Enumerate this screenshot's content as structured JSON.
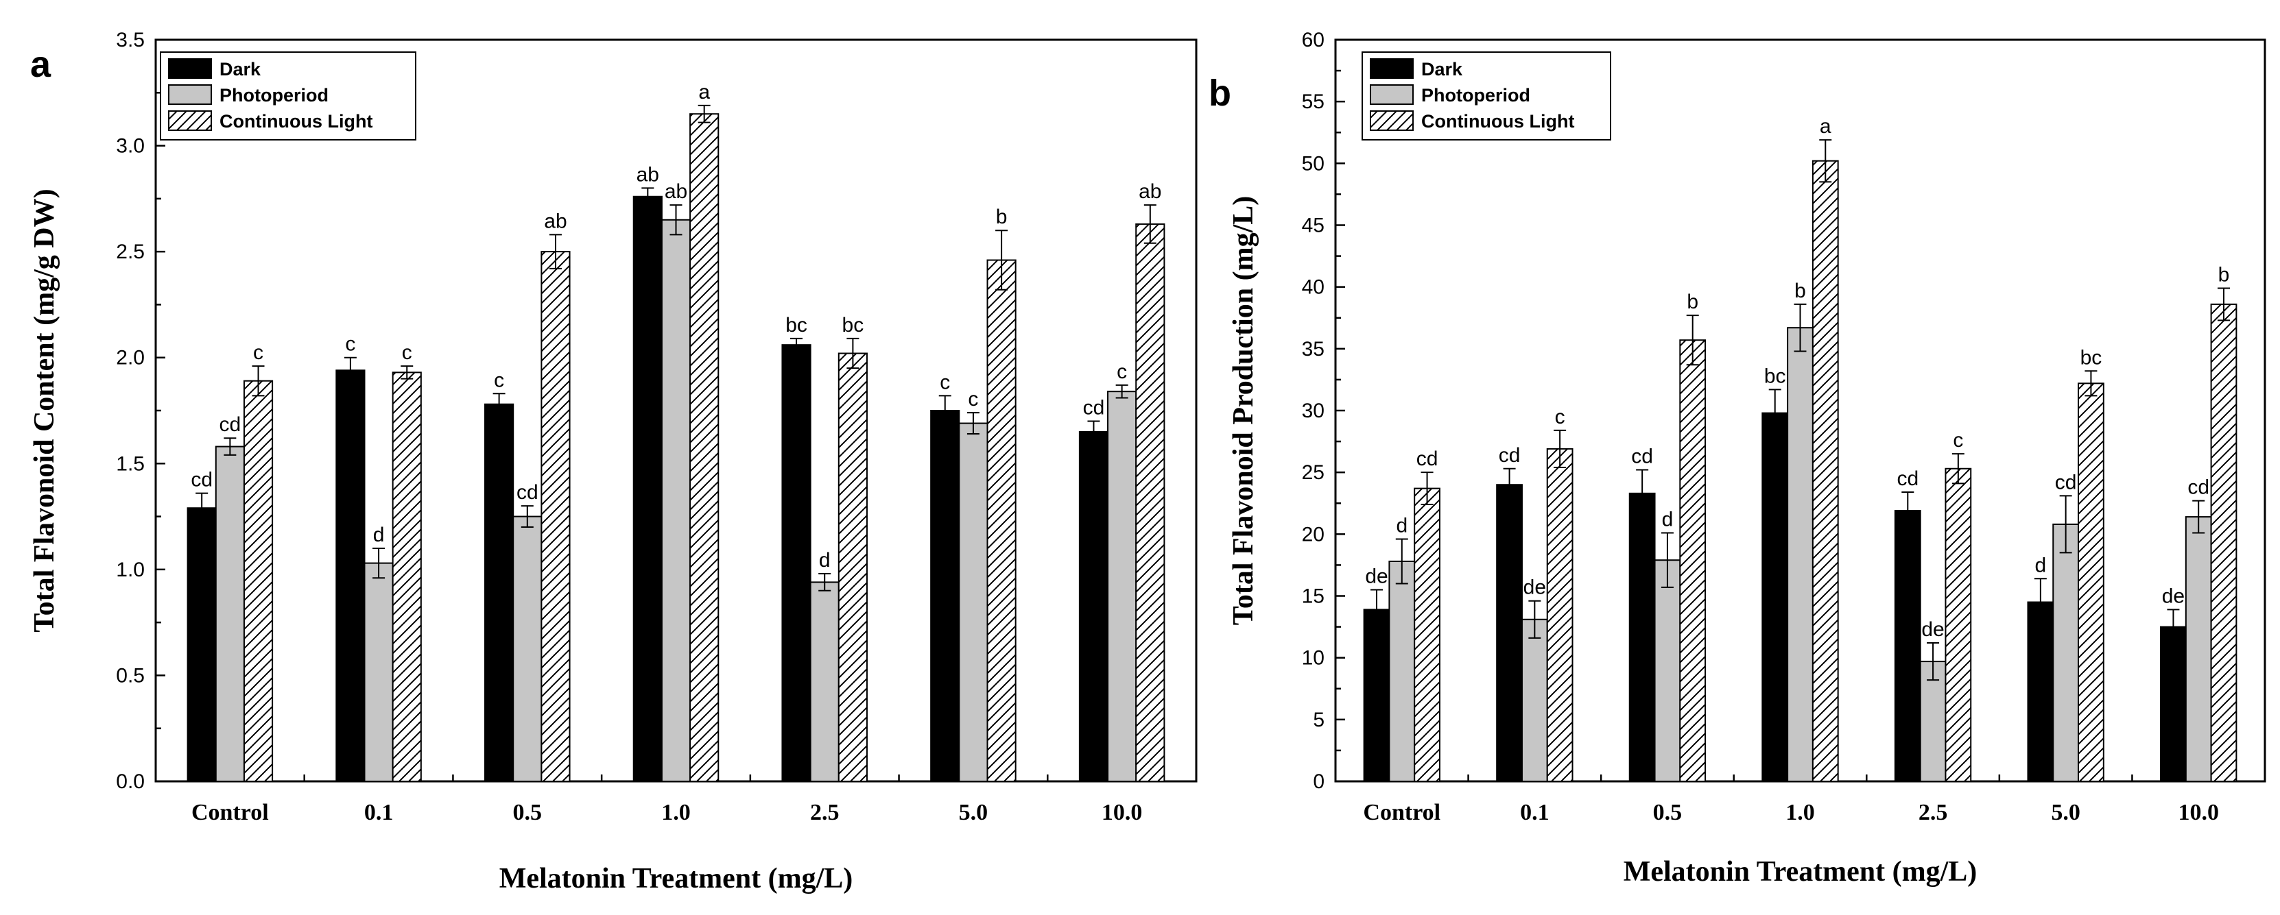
{
  "chart_data": [
    {
      "type": "bar",
      "panel_label": "a",
      "title": "",
      "xlabel": "Melatonin Treatment (mg/L)",
      "ylabel": "Total Flavonoid Content (mg/g DW)",
      "ylim": [
        0,
        3.5
      ],
      "yticks": [
        "0.0",
        "0.5",
        "1.0",
        "1.5",
        "2.0",
        "2.5",
        "3.0",
        "3.5"
      ],
      "ytick_values": [
        0,
        0.5,
        1.0,
        1.5,
        2.0,
        2.5,
        3.0,
        3.5
      ],
      "categories": [
        "Control",
        "0.1",
        "0.5",
        "1.0",
        "2.5",
        "5.0",
        "10.0"
      ],
      "legend_position": "top-left",
      "series": [
        {
          "name": "Dark",
          "style": "dark",
          "values": [
            1.29,
            1.94,
            1.78,
            2.76,
            2.06,
            1.75,
            1.65
          ],
          "errors": [
            0.07,
            0.06,
            0.05,
            0.04,
            0.03,
            0.07,
            0.05
          ],
          "labels": [
            "cd",
            "c",
            "c",
            "ab",
            "bc",
            "c",
            "cd"
          ]
        },
        {
          "name": "Photoperiod",
          "style": "gray",
          "values": [
            1.58,
            1.03,
            1.25,
            2.65,
            0.94,
            1.69,
            1.84
          ],
          "errors": [
            0.04,
            0.07,
            0.05,
            0.07,
            0.04,
            0.05,
            0.03
          ],
          "labels": [
            "cd",
            "d",
            "cd",
            "ab",
            "d",
            "c",
            "c"
          ]
        },
        {
          "name": "Continuous Light",
          "style": "hatch",
          "values": [
            1.89,
            1.93,
            2.5,
            3.15,
            2.02,
            2.46,
            2.63
          ],
          "errors": [
            0.07,
            0.03,
            0.08,
            0.04,
            0.07,
            0.14,
            0.09
          ],
          "labels": [
            "c",
            "c",
            "ab",
            "a",
            "bc",
            "b",
            "ab"
          ]
        }
      ]
    },
    {
      "type": "bar",
      "panel_label": "b",
      "title": "",
      "xlabel": "Melatonin Treatment (mg/L)",
      "ylabel": "Total Flavonoid Production (mg/L)",
      "ylim": [
        0,
        60
      ],
      "yticks": [
        "0",
        "5",
        "10",
        "15",
        "20",
        "25",
        "30",
        "35",
        "40",
        "45",
        "50",
        "55",
        "60"
      ],
      "ytick_values": [
        0,
        5,
        10,
        15,
        20,
        25,
        30,
        35,
        40,
        45,
        50,
        55,
        60
      ],
      "categories": [
        "Control",
        "0.1",
        "0.5",
        "1.0",
        "2.5",
        "5.0",
        "10.0"
      ],
      "legend_position": "top-left",
      "series": [
        {
          "name": "Dark",
          "style": "dark",
          "values": [
            13.9,
            24.0,
            23.3,
            29.8,
            21.9,
            14.5,
            12.5
          ],
          "errors": [
            1.6,
            1.3,
            1.9,
            1.9,
            1.5,
            1.9,
            1.4
          ],
          "labels": [
            "de",
            "cd",
            "cd",
            "bc",
            "cd",
            "d",
            "de"
          ]
        },
        {
          "name": "Photoperiod",
          "style": "gray",
          "values": [
            17.8,
            13.1,
            17.9,
            36.7,
            9.7,
            20.8,
            21.4
          ],
          "errors": [
            1.8,
            1.5,
            2.2,
            1.9,
            1.5,
            2.3,
            1.3
          ],
          "labels": [
            "d",
            "de",
            "d",
            "b",
            "de",
            "cd",
            "cd"
          ]
        },
        {
          "name": "Continuous Light",
          "style": "hatch",
          "values": [
            23.7,
            26.9,
            35.7,
            50.2,
            25.3,
            32.2,
            38.6
          ],
          "errors": [
            1.3,
            1.5,
            2.0,
            1.7,
            1.2,
            1.0,
            1.3
          ],
          "labels": [
            "cd",
            "c",
            "b",
            "a",
            "c",
            "bc",
            "b"
          ]
        }
      ]
    }
  ]
}
